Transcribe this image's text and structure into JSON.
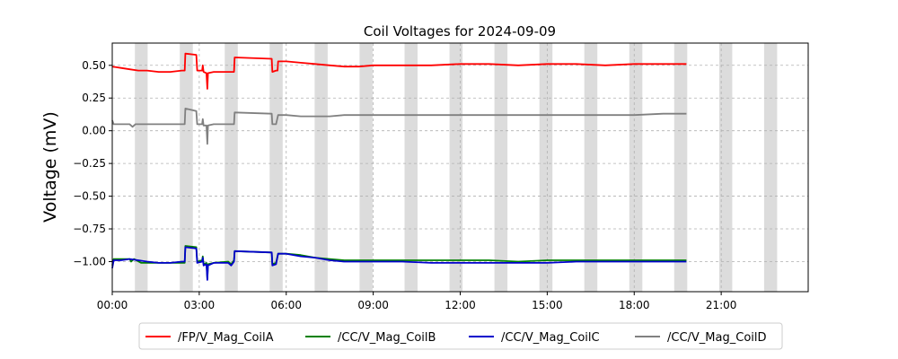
{
  "chart_data": {
    "type": "line",
    "title": "Coil Voltages for 2024-09-09",
    "xlabel": "",
    "ylabel": "Voltage (mV)",
    "xlim": [
      "00:00",
      "24:00"
    ],
    "ylim": [
      -1.23,
      0.67
    ],
    "x_ticks": [
      "00:00",
      "03:00",
      "06:00",
      "09:00",
      "12:00",
      "15:00",
      "18:00",
      "21:00"
    ],
    "y_ticks": [
      0.5,
      0.25,
      0.0,
      -0.25,
      -0.5,
      -0.75,
      -1.0
    ],
    "y_tick_labels": [
      "0.50",
      "0.25",
      "0.00",
      "−0.25",
      "−0.50",
      "−0.75",
      "−1.00"
    ],
    "grid": "dashed",
    "legend_position": "bottom-center",
    "shaded_intervals_hours": [
      [
        0.78,
        1.22
      ],
      [
        2.33,
        2.78
      ],
      [
        3.88,
        4.33
      ],
      [
        5.43,
        5.88
      ],
      [
        6.98,
        7.43
      ],
      [
        8.53,
        8.98
      ],
      [
        10.08,
        10.53
      ],
      [
        11.63,
        12.08
      ],
      [
        13.18,
        13.63
      ],
      [
        14.73,
        15.18
      ],
      [
        16.28,
        16.73
      ],
      [
        17.83,
        18.28
      ],
      [
        19.38,
        19.83
      ],
      [
        20.93,
        21.38
      ],
      [
        22.48,
        22.93
      ]
    ],
    "colors": {
      "shading": "#dcdcdc",
      "grid": "#b0b0b0"
    },
    "series": [
      {
        "name": "/FP/V_Mag_CoilA",
        "color": "#ff0000",
        "points": [
          [
            0.0,
            0.49
          ],
          [
            0.3,
            0.48
          ],
          [
            0.6,
            0.47
          ],
          [
            0.9,
            0.46
          ],
          [
            1.2,
            0.46
          ],
          [
            1.6,
            0.45
          ],
          [
            2.0,
            0.45
          ],
          [
            2.4,
            0.46
          ],
          [
            2.5,
            0.46
          ],
          [
            2.52,
            0.59
          ],
          [
            2.9,
            0.58
          ],
          [
            2.93,
            0.46
          ],
          [
            3.1,
            0.46
          ],
          [
            3.12,
            0.5
          ],
          [
            3.15,
            0.45
          ],
          [
            3.25,
            0.44
          ],
          [
            3.28,
            0.32
          ],
          [
            3.3,
            0.44
          ],
          [
            3.5,
            0.45
          ],
          [
            4.0,
            0.45
          ],
          [
            4.2,
            0.45
          ],
          [
            4.22,
            0.56
          ],
          [
            5.5,
            0.55
          ],
          [
            5.52,
            0.45
          ],
          [
            5.65,
            0.46
          ],
          [
            5.7,
            0.46
          ],
          [
            5.72,
            0.53
          ],
          [
            6.0,
            0.53
          ],
          [
            6.5,
            0.52
          ],
          [
            7.0,
            0.51
          ],
          [
            7.5,
            0.5
          ],
          [
            8.0,
            0.49
          ],
          [
            8.5,
            0.49
          ],
          [
            9.0,
            0.5
          ],
          [
            10.0,
            0.5
          ],
          [
            11.0,
            0.5
          ],
          [
            12.0,
            0.51
          ],
          [
            13.0,
            0.51
          ],
          [
            14.0,
            0.5
          ],
          [
            15.0,
            0.51
          ],
          [
            16.0,
            0.51
          ],
          [
            17.0,
            0.5
          ],
          [
            18.0,
            0.51
          ],
          [
            19.0,
            0.51
          ],
          [
            19.8,
            0.51
          ]
        ]
      },
      {
        "name": "/CC/V_Mag_CoilB",
        "color": "#008000",
        "points": [
          [
            0.0,
            -1.03
          ],
          [
            0.05,
            -0.98
          ],
          [
            0.3,
            -0.98
          ],
          [
            0.6,
            -0.98
          ],
          [
            0.65,
            -1.0
          ],
          [
            0.75,
            -0.98
          ],
          [
            1.0,
            -1.01
          ],
          [
            1.3,
            -1.01
          ],
          [
            1.6,
            -1.01
          ],
          [
            2.0,
            -1.01
          ],
          [
            2.4,
            -1.01
          ],
          [
            2.5,
            -1.01
          ],
          [
            2.52,
            -0.88
          ],
          [
            2.9,
            -0.89
          ],
          [
            2.93,
            -1.0
          ],
          [
            3.1,
            -0.99
          ],
          [
            3.12,
            -0.96
          ],
          [
            3.15,
            -1.02
          ],
          [
            3.25,
            -1.01
          ],
          [
            3.28,
            -1.13
          ],
          [
            3.3,
            -1.02
          ],
          [
            3.5,
            -1.01
          ],
          [
            4.0,
            -1.0
          ],
          [
            4.1,
            -1.02
          ],
          [
            4.2,
            -0.99
          ],
          [
            4.22,
            -0.92
          ],
          [
            5.5,
            -0.93
          ],
          [
            5.52,
            -1.02
          ],
          [
            5.65,
            -1.01
          ],
          [
            5.72,
            -0.94
          ],
          [
            6.0,
            -0.94
          ],
          [
            6.5,
            -0.95
          ],
          [
            7.0,
            -0.97
          ],
          [
            7.5,
            -0.98
          ],
          [
            8.0,
            -0.99
          ],
          [
            8.5,
            -0.99
          ],
          [
            9.0,
            -0.99
          ],
          [
            10.0,
            -0.99
          ],
          [
            11.0,
            -0.99
          ],
          [
            12.0,
            -0.99
          ],
          [
            13.0,
            -0.99
          ],
          [
            14.0,
            -1.0
          ],
          [
            15.0,
            -0.99
          ],
          [
            16.0,
            -0.99
          ],
          [
            17.0,
            -0.99
          ],
          [
            18.0,
            -0.99
          ],
          [
            19.0,
            -0.99
          ],
          [
            19.8,
            -0.99
          ]
        ]
      },
      {
        "name": "/CC/V_Mag_CoilC",
        "color": "#0000cc",
        "points": [
          [
            0.0,
            -1.05
          ],
          [
            0.05,
            -0.99
          ],
          [
            0.3,
            -0.99
          ],
          [
            0.6,
            -0.98
          ],
          [
            0.9,
            -0.99
          ],
          [
            1.2,
            -1.0
          ],
          [
            1.6,
            -1.01
          ],
          [
            2.0,
            -1.01
          ],
          [
            2.4,
            -1.0
          ],
          [
            2.5,
            -1.0
          ],
          [
            2.52,
            -0.89
          ],
          [
            2.9,
            -0.9
          ],
          [
            2.93,
            -1.01
          ],
          [
            3.1,
            -1.0
          ],
          [
            3.12,
            -0.97
          ],
          [
            3.15,
            -1.03
          ],
          [
            3.25,
            -1.02
          ],
          [
            3.28,
            -1.14
          ],
          [
            3.3,
            -1.03
          ],
          [
            3.5,
            -1.01
          ],
          [
            4.0,
            -1.01
          ],
          [
            4.1,
            -1.03
          ],
          [
            4.2,
            -1.0
          ],
          [
            4.22,
            -0.92
          ],
          [
            5.5,
            -0.93
          ],
          [
            5.52,
            -1.03
          ],
          [
            5.65,
            -1.02
          ],
          [
            5.72,
            -0.94
          ],
          [
            6.0,
            -0.94
          ],
          [
            6.5,
            -0.96
          ],
          [
            7.0,
            -0.97
          ],
          [
            7.5,
            -0.99
          ],
          [
            8.0,
            -1.0
          ],
          [
            8.5,
            -1.0
          ],
          [
            9.0,
            -1.0
          ],
          [
            10.0,
            -1.0
          ],
          [
            11.0,
            -1.01
          ],
          [
            12.0,
            -1.01
          ],
          [
            13.0,
            -1.01
          ],
          [
            14.0,
            -1.01
          ],
          [
            15.0,
            -1.01
          ],
          [
            16.0,
            -1.0
          ],
          [
            17.0,
            -1.0
          ],
          [
            18.0,
            -1.0
          ],
          [
            19.0,
            -1.0
          ],
          [
            19.8,
            -1.0
          ]
        ]
      },
      {
        "name": "/CC/V_Mag_CoilD",
        "color": "#808080",
        "points": [
          [
            0.0,
            0.08
          ],
          [
            0.05,
            0.05
          ],
          [
            0.3,
            0.05
          ],
          [
            0.6,
            0.05
          ],
          [
            0.7,
            0.03
          ],
          [
            0.8,
            0.05
          ],
          [
            1.2,
            0.05
          ],
          [
            1.6,
            0.05
          ],
          [
            2.0,
            0.05
          ],
          [
            2.4,
            0.05
          ],
          [
            2.5,
            0.05
          ],
          [
            2.52,
            0.17
          ],
          [
            2.9,
            0.15
          ],
          [
            2.93,
            0.05
          ],
          [
            3.1,
            0.05
          ],
          [
            3.12,
            0.09
          ],
          [
            3.15,
            0.04
          ],
          [
            3.25,
            0.04
          ],
          [
            3.28,
            -0.1
          ],
          [
            3.3,
            0.04
          ],
          [
            3.5,
            0.05
          ],
          [
            4.0,
            0.05
          ],
          [
            4.2,
            0.05
          ],
          [
            4.22,
            0.14
          ],
          [
            5.5,
            0.13
          ],
          [
            5.52,
            0.05
          ],
          [
            5.65,
            0.05
          ],
          [
            5.72,
            0.12
          ],
          [
            6.0,
            0.12
          ],
          [
            6.5,
            0.11
          ],
          [
            7.0,
            0.11
          ],
          [
            7.5,
            0.11
          ],
          [
            8.0,
            0.12
          ],
          [
            9.0,
            0.12
          ],
          [
            10.0,
            0.12
          ],
          [
            11.0,
            0.12
          ],
          [
            12.0,
            0.12
          ],
          [
            13.0,
            0.12
          ],
          [
            14.0,
            0.12
          ],
          [
            15.0,
            0.12
          ],
          [
            16.0,
            0.12
          ],
          [
            17.0,
            0.12
          ],
          [
            18.0,
            0.12
          ],
          [
            19.0,
            0.13
          ],
          [
            19.8,
            0.13
          ]
        ]
      }
    ]
  }
}
